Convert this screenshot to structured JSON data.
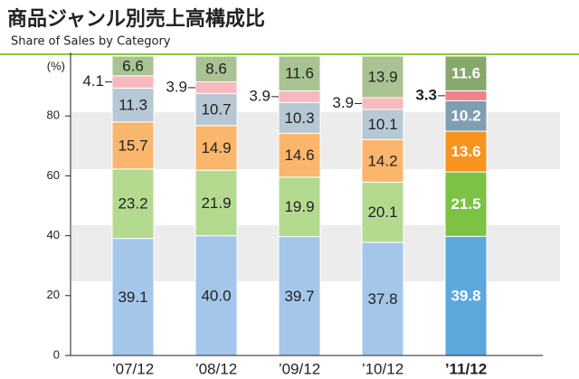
{
  "chart_data": {
    "type": "stacked_bar",
    "title": "商品ジャンル別売上高構成比",
    "subtitle": "Share of Sales by Category",
    "y_unit": "(%)",
    "categories": [
      "’07/12",
      "’08/12",
      "’09/12",
      "’10/12",
      "’11/12"
    ],
    "highlight": 4,
    "ylim": [
      0,
      100
    ],
    "yticks": [
      0,
      20,
      40,
      60,
      80
    ],
    "series": [
      {
        "color": "#a4c6ea",
        "highlight_color": "#5ba8dd",
        "values": [
          39.1,
          40,
          39.7,
          37.8,
          39.8
        ],
        "value_labels": [
          "39.1",
          "40.0",
          "39.7",
          "37.8",
          "39.8"
        ]
      },
      {
        "color": "#b4da90",
        "highlight_color": "#7cc243",
        "values": [
          23.2,
          21.9,
          19.9,
          20.1,
          21.5
        ]
      },
      {
        "color": "#f9b66c",
        "highlight_color": "#f7931e",
        "values": [
          15.7,
          14.9,
          14.6,
          14.2,
          13.6
        ]
      },
      {
        "color": "#b6c8d4",
        "highlight_color": "#7e9eb2",
        "values": [
          11.3,
          10.7,
          10.3,
          10.1,
          10.2
        ]
      },
      {
        "color": "#f7b9be",
        "highlight_color": "#ef818a",
        "values": [
          4.1,
          3.9,
          3.9,
          3.9,
          3.3
        ],
        "label_outside": true
      },
      {
        "color": "#a8c391",
        "highlight_color": "#87a86b",
        "values": [
          6.6,
          8.6,
          11.6,
          13.9,
          11.6
        ]
      }
    ]
  }
}
